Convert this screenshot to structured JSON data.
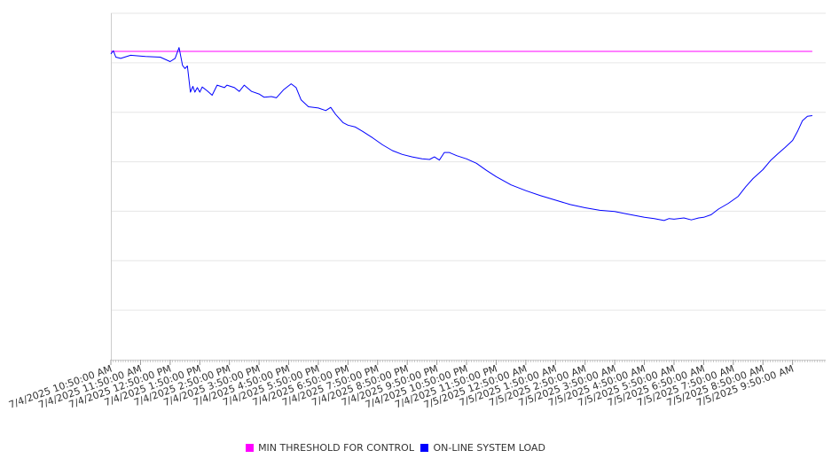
{
  "chart_data": {
    "type": "line",
    "title": "",
    "xlabel": "",
    "ylabel": "",
    "x_tick_labels": [
      "7/4/2025 10:50:00 AM",
      "7/4/2025 11:50:00 AM",
      "7/4/2025 12:50:00 PM",
      "7/4/2025 1:50:00 PM",
      "7/4/2025 2:50:00 PM",
      "7/4/2025 3:50:00 PM",
      "7/4/2025 4:50:00 PM",
      "7/4/2025 5:50:00 PM",
      "7/4/2025 6:50:00 PM",
      "7/4/2025 7:50:00 PM",
      "7/4/2025 8:50:00 PM",
      "7/4/2025 9:50:00 PM",
      "7/4/2025 10:50:00 PM",
      "7/4/2025 11:50:00 PM",
      "7/5/2025 12:50:00 AM",
      "7/5/2025 1:50:00 AM",
      "7/5/2025 2:50:00 AM",
      "7/5/2025 3:50:00 AM",
      "7/5/2025 4:50:00 AM",
      "7/5/2025 5:50:00 AM",
      "7/5/2025 6:50:00 AM",
      "7/5/2025 7:50:00 AM",
      "7/5/2025 8:50:00 AM",
      "7/5/2025 9:50:00 AM"
    ],
    "y_axis_labels_visible": false,
    "grid": true,
    "legend_position": "bottom",
    "series": [
      {
        "name": "MIN THRESHOLD FOR CONTROL",
        "color": "#ff00ff",
        "points": [
          [
            "7/4/2025 10:50:00 AM",
            48.5
          ],
          [
            "7/5/2025 10:30:00 AM",
            48.5
          ]
        ]
      },
      {
        "name": "ON-LINE SYSTEM LOAD",
        "color": "#0000ff",
        "points": [
          [
            "7/4/2025 10:50:00 AM",
            48.1
          ],
          [
            "7/4/2025 10:55:00 AM",
            48.6
          ],
          [
            "7/4/2025 11:00:00 AM",
            47.6
          ],
          [
            "7/4/2025 11:10:00 AM",
            47.4
          ],
          [
            "7/4/2025 11:30:00 AM",
            47.9
          ],
          [
            "7/4/2025 12:00:00 PM",
            47.7
          ],
          [
            "7/4/2025 12:30:00 PM",
            47.6
          ],
          [
            "7/4/2025 12:50:00 PM",
            46.9
          ],
          [
            "7/4/2025 1:00:00 PM",
            47.4
          ],
          [
            "7/4/2025 1:08:00 PM",
            49.1
          ],
          [
            "7/4/2025 1:15:00 PM",
            46.3
          ],
          [
            "7/4/2025 1:20:00 PM",
            45.8
          ],
          [
            "7/4/2025 1:25:00 PM",
            46.2
          ],
          [
            "7/4/2025 1:31:00 PM",
            42.1
          ],
          [
            "7/4/2025 1:36:00 PM",
            43.0
          ],
          [
            "7/4/2025 1:40:00 PM",
            42.1
          ],
          [
            "7/4/2025 1:45:00 PM",
            42.8
          ],
          [
            "7/4/2025 1:50:00 PM",
            42.1
          ],
          [
            "7/4/2025 1:55:00 PM",
            42.9
          ],
          [
            "7/4/2025 2:05:00 PM",
            42.3
          ],
          [
            "7/4/2025 2:15:00 PM",
            41.6
          ],
          [
            "7/4/2025 2:25:00 PM",
            43.2
          ],
          [
            "7/4/2025 2:40:00 PM",
            42.8
          ],
          [
            "7/4/2025 2:45:00 PM",
            43.2
          ],
          [
            "7/4/2025 3:00:00 PM",
            42.8
          ],
          [
            "7/4/2025 3:10:00 PM",
            42.2
          ],
          [
            "7/4/2025 3:20:00 PM",
            43.2
          ],
          [
            "7/4/2025 3:35:00 PM",
            42.2
          ],
          [
            "7/4/2025 3:50:00 PM",
            41.8
          ],
          [
            "7/4/2025 4:00:00 PM",
            41.3
          ],
          [
            "7/4/2025 4:15:00 PM",
            41.4
          ],
          [
            "7/4/2025 4:25:00 PM",
            41.2
          ],
          [
            "7/4/2025 4:40:00 PM",
            42.5
          ],
          [
            "7/4/2025 4:55:00 PM",
            43.4
          ],
          [
            "7/4/2025 5:05:00 PM",
            42.8
          ],
          [
            "7/4/2025 5:15:00 PM",
            40.9
          ],
          [
            "7/4/2025 5:30:00 PM",
            39.8
          ],
          [
            "7/4/2025 5:50:00 PM",
            39.6
          ],
          [
            "7/4/2025 6:05:00 PM",
            39.2
          ],
          [
            "7/4/2025 6:15:00 PM",
            39.7
          ],
          [
            "7/4/2025 6:25:00 PM",
            38.6
          ],
          [
            "7/4/2025 6:40:00 PM",
            37.3
          ],
          [
            "7/4/2025 6:50:00 PM",
            36.9
          ],
          [
            "7/4/2025 7:05:00 PM",
            36.6
          ],
          [
            "7/4/2025 7:20:00 PM",
            35.9
          ],
          [
            "7/4/2025 7:40:00 PM",
            34.9
          ],
          [
            "7/4/2025 8:00:00 PM",
            33.8
          ],
          [
            "7/4/2025 8:20:00 PM",
            32.9
          ],
          [
            "7/4/2025 8:40:00 PM",
            32.3
          ],
          [
            "7/4/2025 9:00:00 PM",
            31.9
          ],
          [
            "7/4/2025 9:20:00 PM",
            31.6
          ],
          [
            "7/4/2025 9:35:00 PM",
            31.5
          ],
          [
            "7/4/2025 9:45:00 PM",
            31.9
          ],
          [
            "7/4/2025 9:55:00 PM",
            31.4
          ],
          [
            "7/4/2025 10:05:00 PM",
            32.6
          ],
          [
            "7/4/2025 10:15:00 PM",
            32.6
          ],
          [
            "7/4/2025 10:30:00 PM",
            32.1
          ],
          [
            "7/4/2025 10:50:00 PM",
            31.6
          ],
          [
            "7/4/2025 11:10:00 PM",
            30.9
          ],
          [
            "7/4/2025 11:30:00 PM",
            29.8
          ],
          [
            "7/4/2025 11:50:00 PM",
            28.8
          ],
          [
            "7/5/2025 12:20:00 AM",
            27.5
          ],
          [
            "7/5/2025 12:50:00 AM",
            26.6
          ],
          [
            "7/5/2025 1:20:00 AM",
            25.8
          ],
          [
            "7/5/2025 1:50:00 AM",
            25.1
          ],
          [
            "7/5/2025 2:20:00 AM",
            24.4
          ],
          [
            "7/5/2025 2:50:00 AM",
            23.9
          ],
          [
            "7/5/2025 3:20:00 AM",
            23.5
          ],
          [
            "7/5/2025 3:50:00 AM",
            23.3
          ],
          [
            "7/5/2025 4:10:00 AM",
            23.0
          ],
          [
            "7/5/2025 4:30:00 AM",
            22.7
          ],
          [
            "7/5/2025 4:50:00 AM",
            22.4
          ],
          [
            "7/5/2025 5:10:00 AM",
            22.2
          ],
          [
            "7/5/2025 5:30:00 AM",
            21.9
          ],
          [
            "7/5/2025 5:40:00 AM",
            22.2
          ],
          [
            "7/5/2025 5:50:00 AM",
            22.1
          ],
          [
            "7/5/2025 6:10:00 AM",
            22.3
          ],
          [
            "7/5/2025 6:25:00 AM",
            22.0
          ],
          [
            "7/5/2025 6:40:00 AM",
            22.3
          ],
          [
            "7/5/2025 6:50:00 AM",
            22.4
          ],
          [
            "7/5/2025 7:05:00 AM",
            22.8
          ],
          [
            "7/5/2025 7:20:00 AM",
            23.7
          ],
          [
            "7/5/2025 7:40:00 AM",
            24.6
          ],
          [
            "7/5/2025 8:00:00 AM",
            25.7
          ],
          [
            "7/5/2025 8:15:00 AM",
            27.2
          ],
          [
            "7/5/2025 8:30:00 AM",
            28.5
          ],
          [
            "7/5/2025 8:50:00 AM",
            29.9
          ],
          [
            "7/5/2025 9:05:00 AM",
            31.3
          ],
          [
            "7/5/2025 9:20:00 AM",
            32.4
          ],
          [
            "7/5/2025 9:35:00 AM",
            33.4
          ],
          [
            "7/5/2025 9:50:00 AM",
            34.5
          ],
          [
            "7/5/2025 10:00:00 AM",
            35.9
          ],
          [
            "7/5/2025 10:10:00 AM",
            37.6
          ],
          [
            "7/5/2025 10:20:00 AM",
            38.3
          ],
          [
            "7/5/2025 10:30:00 AM",
            38.4
          ]
        ]
      }
    ]
  }
}
